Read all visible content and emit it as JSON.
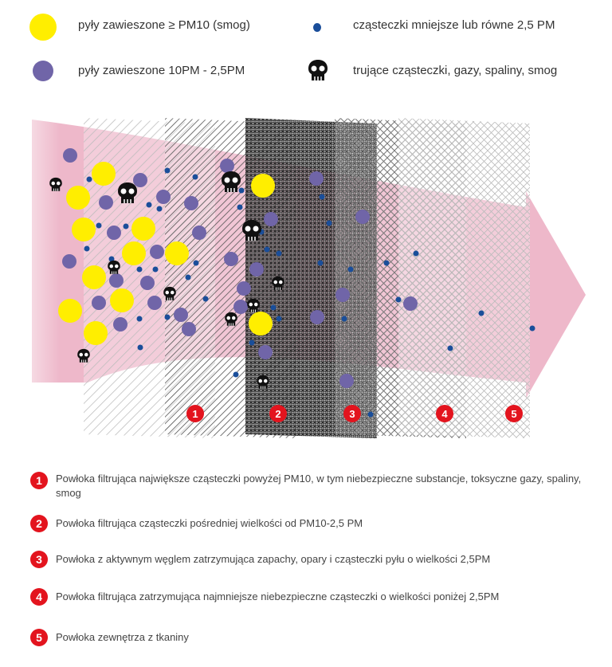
{
  "legend": [
    {
      "label": "pyły zawieszone ≥ PM10 (smog)",
      "icon": "yellow-circle",
      "color": "#ffee00"
    },
    {
      "label": "cząsteczki mniejsze lub równe 2,5 PM",
      "icon": "blue-dot",
      "color": "#1a4e9a"
    },
    {
      "label": "pyły zawieszone 10PM - 2,5PM",
      "icon": "purple-circle",
      "color": "#7065a8"
    },
    {
      "label": "trujące cząsteczki, gazy, spaliny, smog",
      "icon": "skull-icon",
      "color": "#111111"
    }
  ],
  "layers": [
    "1",
    "2",
    "3",
    "4",
    "5"
  ],
  "descriptions": [
    {
      "num": "1",
      "text": "Powłoka filtrująca największe cząsteczki powyżej PM10, w tym niebezpieczne substancje, toksyczne gazy, spaliny, smog"
    },
    {
      "num": "2",
      "text": "Powłoka filtrująca cząsteczki pośredniej wielkości od PM10-2,5 PM"
    },
    {
      "num": "3",
      "text": "Powłoka z aktywnym węglem zatrzymująca zapachy, opary i  cząsteczki pyłu o wielkości 2,5PM"
    },
    {
      "num": "4",
      "text": "Powłoka filtrująca zatrzymująca najmniejsze niebezpieczne cząsteczki o wielkości poniżej 2,5PM"
    },
    {
      "num": "5",
      "text": "Powłoka zewnętrza z tkaniny"
    }
  ],
  "colors": {
    "badge": "#e3141e",
    "arrow": "#e8a0b8",
    "yellow": "#ffee00",
    "purple": "#7065a8",
    "blue": "#1a4e9a"
  }
}
